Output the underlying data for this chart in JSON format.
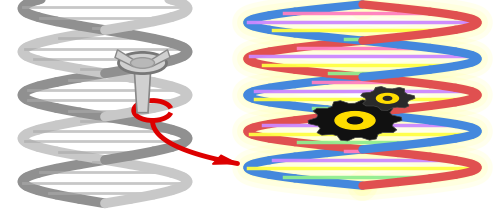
{
  "fig_width": 5.0,
  "fig_height": 2.21,
  "dpi": 100,
  "bg_color": "#ffffff",
  "arrow_color": "#dd0000",
  "gear_color": "#111111",
  "gear_inner_color": "#ffdd00",
  "left_helix_color1": "#c8c8c8",
  "left_helix_color2": "#909090",
  "left_rung_color": "#aaaaaa",
  "right_helix_color1": "#e05050",
  "right_helix_color2": "#4488dd",
  "right_rung_colors": [
    "#ff80c0",
    "#90ee90",
    "#ffff44",
    "#cc88ff"
  ],
  "glow_color": "#ffff80"
}
